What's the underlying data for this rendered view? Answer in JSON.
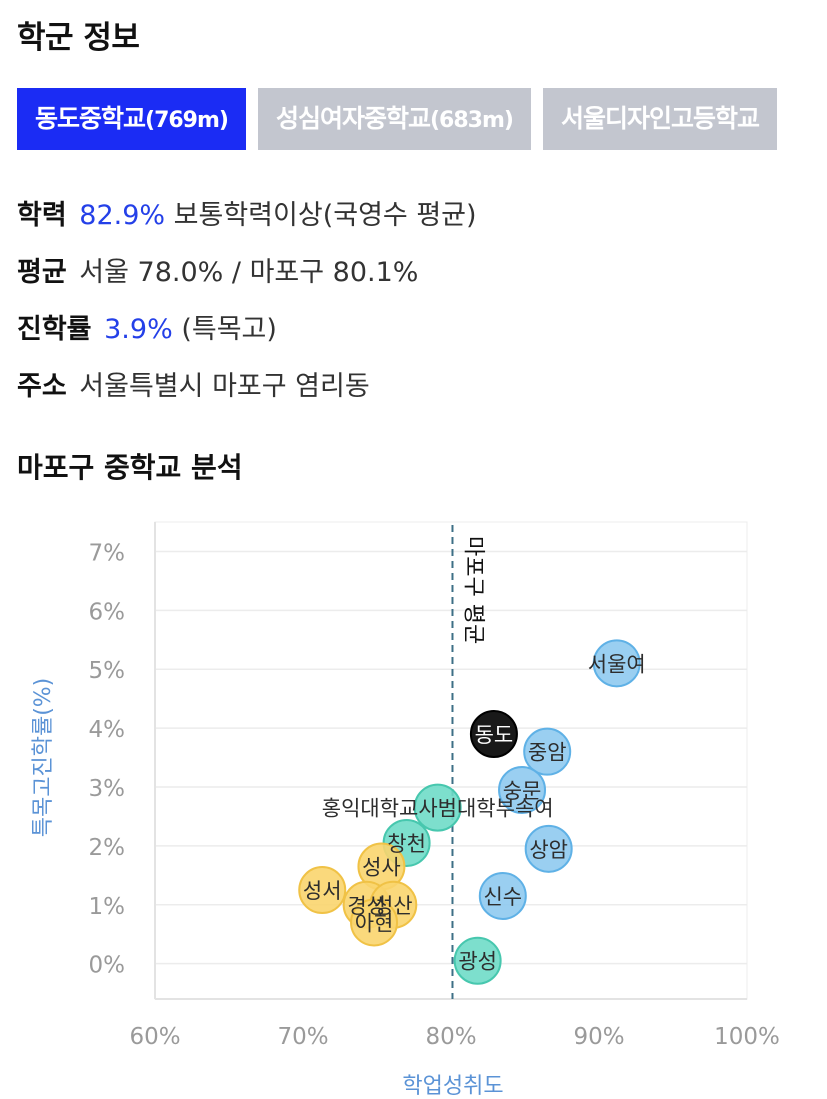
{
  "page": {
    "title": "학군 정보"
  },
  "tabs": [
    {
      "name": "동도중학교",
      "distance": "(769m)",
      "active": true
    },
    {
      "name": "성심여자중학교",
      "distance": "(683m)",
      "active": false
    },
    {
      "name": "서울디자인고등학교",
      "distance": "",
      "active": false
    }
  ],
  "info": {
    "academic": {
      "label": "학력",
      "value": "82.9%",
      "desc": "보통학력이상(국영수 평균)"
    },
    "average": {
      "label": "평균",
      "value": "서울 78.0% / 마포구 80.1%"
    },
    "advancement": {
      "label": "진학률",
      "value": "3.9%",
      "desc": "(특목고)"
    },
    "address": {
      "label": "주소",
      "value": "서울특별시 마포구 염리동"
    }
  },
  "analysis": {
    "title": "마포구 중학교 분석"
  },
  "colors": {
    "accent": "#1b2cf4",
    "highlight_text": "#2440e8",
    "tab_inactive": "#c3c6cf",
    "axis_label": "#5b93d6",
    "tier_high": "#8fcaf0",
    "tier_mid": "#6fdcc8",
    "tier_low": "#fad56e",
    "current": "#000000"
  },
  "chart_data": {
    "type": "scatter",
    "xlabel": "학업성취도",
    "ylabel": "특목고진학률(%)",
    "xlim": [
      60,
      100
    ],
    "ylim": [
      -0.6,
      7.5
    ],
    "xticks": [
      "60%",
      "70%",
      "80%",
      "90%",
      "100%"
    ],
    "yticks": [
      "0%",
      "1%",
      "2%",
      "3%",
      "4%",
      "5%",
      "6%",
      "7%"
    ],
    "grid": true,
    "reference_line": {
      "x": 80.1,
      "label": "마포구 평균"
    },
    "points": [
      {
        "label": "서울여",
        "x": 91.2,
        "y": 5.1,
        "group": "high"
      },
      {
        "label": "중암",
        "x": 86.5,
        "y": 3.6,
        "group": "high"
      },
      {
        "label": "숭문",
        "x": 84.8,
        "y": 2.95,
        "group": "high"
      },
      {
        "label": "상암",
        "x": 86.6,
        "y": 1.95,
        "group": "high"
      },
      {
        "label": "신수",
        "x": 83.5,
        "y": 1.15,
        "group": "high"
      },
      {
        "label": "홍익대학교사범대학부속여",
        "x": 79.1,
        "y": 2.65,
        "group": "mid"
      },
      {
        "label": "창천",
        "x": 77.0,
        "y": 2.05,
        "group": "mid"
      },
      {
        "label": "광성",
        "x": 81.8,
        "y": 0.05,
        "group": "mid"
      },
      {
        "label": "성사",
        "x": 75.3,
        "y": 1.65,
        "group": "low"
      },
      {
        "label": "성서",
        "x": 71.3,
        "y": 1.25,
        "group": "low"
      },
      {
        "label": "경성",
        "x": 74.3,
        "y": 1.0,
        "group": "low"
      },
      {
        "label": "성산",
        "x": 76.1,
        "y": 1.0,
        "group": "low"
      },
      {
        "label": "아현",
        "x": 74.8,
        "y": 0.7,
        "group": "low"
      },
      {
        "label": "동도",
        "x": 82.9,
        "y": 3.9,
        "group": "current"
      }
    ]
  }
}
